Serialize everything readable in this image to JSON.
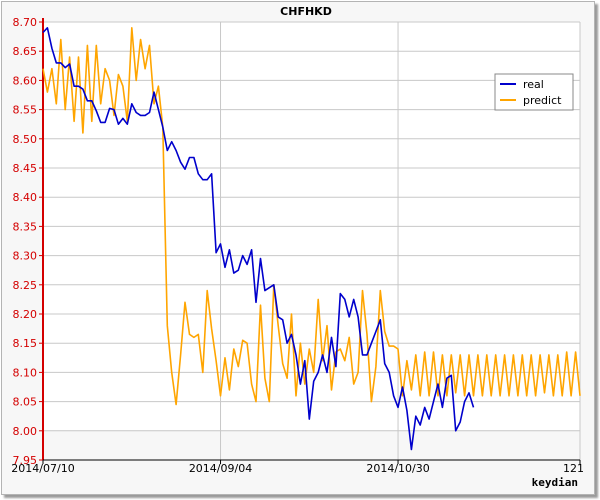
{
  "chart_data": {
    "type": "line",
    "title": "CHFHKD",
    "xlabel": "",
    "ylabel": "",
    "credit": "keydian",
    "xlim": [
      0,
      121
    ],
    "ylim": [
      7.95,
      8.7
    ],
    "x_ticks": [
      {
        "x": 0,
        "label": "2014/07/10"
      },
      {
        "x": 40,
        "label": "2014/09/04"
      },
      {
        "x": 80,
        "label": "2014/10/30"
      },
      {
        "x": 121,
        "label": "121"
      }
    ],
    "y_ticks": [
      "7.95",
      "8.00",
      "8.05",
      "8.10",
      "8.15",
      "8.20",
      "8.25",
      "8.30",
      "8.35",
      "8.40",
      "8.45",
      "8.50",
      "8.55",
      "8.60",
      "8.65",
      "8.70"
    ],
    "grid": true,
    "legend_position": "top-right",
    "series": [
      {
        "name": "real",
        "color": "#0000cc",
        "values": [
          8.682,
          8.69,
          8.655,
          8.63,
          8.63,
          8.622,
          8.628,
          8.59,
          8.59,
          8.585,
          8.565,
          8.565,
          8.548,
          8.528,
          8.528,
          8.552,
          8.55,
          8.525,
          8.535,
          8.525,
          8.56,
          8.545,
          8.54,
          8.54,
          8.545,
          8.58,
          8.55,
          8.52,
          8.48,
          8.495,
          8.48,
          8.46,
          8.448,
          8.468,
          8.468,
          8.44,
          8.43,
          8.43,
          8.44,
          8.305,
          8.32,
          8.28,
          8.31,
          8.27,
          8.275,
          8.3,
          8.285,
          8.31,
          8.22,
          8.295,
          8.24,
          8.245,
          8.25,
          8.195,
          8.19,
          8.15,
          8.165,
          8.13,
          8.08,
          8.12,
          8.02,
          8.085,
          8.1,
          8.13,
          8.1,
          8.16,
          8.11,
          8.235,
          8.225,
          8.195,
          8.225,
          8.195,
          8.13,
          8.13,
          8.15,
          8.17,
          8.19,
          8.115,
          8.1,
          8.06,
          8.04,
          8.075,
          8.035,
          7.968,
          8.025,
          8.01,
          8.04,
          8.02,
          8.05,
          8.08,
          8.04,
          8.09,
          8.095,
          8.0,
          8.015,
          8.05,
          8.065,
          8.04
        ]
      },
      {
        "name": "predict",
        "color": "#ffa500",
        "values": [
          8.62,
          8.58,
          8.62,
          8.56,
          8.67,
          8.55,
          8.64,
          8.53,
          8.64,
          8.51,
          8.66,
          8.53,
          8.66,
          8.56,
          8.62,
          8.6,
          8.54,
          8.61,
          8.59,
          8.53,
          8.69,
          8.6,
          8.67,
          8.62,
          8.66,
          8.56,
          8.59,
          8.52,
          8.18,
          8.1,
          8.045,
          8.13,
          8.22,
          8.165,
          8.16,
          8.165,
          8.1,
          8.24,
          8.175,
          8.12,
          8.06,
          8.125,
          8.07,
          8.14,
          8.11,
          8.155,
          8.15,
          8.08,
          8.05,
          8.215,
          8.09,
          8.05,
          8.25,
          8.18,
          8.115,
          8.09,
          8.2,
          8.06,
          8.15,
          8.08,
          8.14,
          8.1,
          8.225,
          8.12,
          8.18,
          8.07,
          8.135,
          8.14,
          8.12,
          8.16,
          8.08,
          8.1,
          8.24,
          8.165,
          8.05,
          8.11,
          8.24,
          8.17,
          8.145,
          8.145,
          8.14,
          8.06,
          8.12,
          8.07,
          8.13,
          8.06,
          8.135,
          8.06,
          8.135,
          8.06,
          8.13,
          8.06,
          8.13,
          8.065,
          8.13,
          8.06,
          8.13,
          8.06,
          8.13,
          8.06,
          8.13,
          8.06,
          8.13,
          8.06,
          8.13,
          8.06,
          8.13,
          8.06,
          8.13,
          8.06,
          8.13,
          8.06,
          8.13,
          8.065,
          8.13,
          8.06,
          8.13,
          8.06,
          8.135,
          8.06,
          8.135,
          8.06
        ]
      }
    ]
  }
}
